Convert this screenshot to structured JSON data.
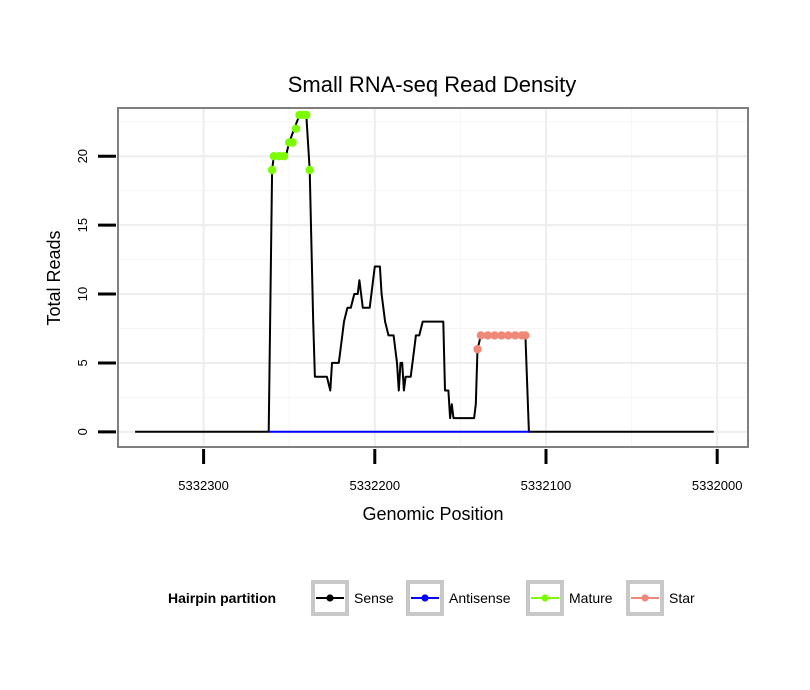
{
  "chart_data": {
    "type": "line",
    "title": "Small RNA-seq Read Density",
    "xlabel": "Genomic Position",
    "ylabel": "Total Reads",
    "xlim": [
      5332350,
      5331982
    ],
    "ylim": [
      -1.1,
      23.5
    ],
    "x_reversed": true,
    "x_ticks": [
      5332300,
      5332200,
      5332100,
      5332000
    ],
    "x_tick_labels": [
      "5332300",
      "5332200",
      "5332100",
      "5332000"
    ],
    "y_ticks": [
      0,
      5,
      10,
      15,
      20
    ],
    "y_tick_labels": [
      "0",
      "5",
      "10",
      "15",
      "20"
    ],
    "grid": true,
    "legend": {
      "title": "Hairpin partition",
      "position": "bottom",
      "entries": [
        {
          "label": "Sense",
          "color": "#000000"
        },
        {
          "label": "Antisense",
          "color": "#0000ff"
        },
        {
          "label": "Mature",
          "color": "#7cfc00"
        },
        {
          "label": "Star",
          "color": "#f08878"
        }
      ]
    },
    "series": [
      {
        "name": "Sense",
        "color": "#000000",
        "points": [
          [
            5332340,
            0
          ],
          [
            5332262,
            0
          ],
          [
            5332260,
            19
          ],
          [
            5332259,
            20
          ],
          [
            5332252,
            20
          ],
          [
            5332250,
            21
          ],
          [
            5332247,
            22
          ],
          [
            5332244,
            23
          ],
          [
            5332240,
            23
          ],
          [
            5332238,
            19
          ],
          [
            5332236,
            8
          ],
          [
            5332235,
            4
          ],
          [
            5332228,
            4
          ],
          [
            5332227,
            3.5
          ],
          [
            5332226,
            3
          ],
          [
            5332225,
            5
          ],
          [
            5332221,
            5
          ],
          [
            5332219,
            7
          ],
          [
            5332218,
            8
          ],
          [
            5332216,
            9
          ],
          [
            5332214,
            9
          ],
          [
            5332212,
            10
          ],
          [
            5332210,
            10
          ],
          [
            5332209,
            11
          ],
          [
            5332208,
            10
          ],
          [
            5332207,
            9
          ],
          [
            5332203,
            9
          ],
          [
            5332201,
            11
          ],
          [
            5332200,
            12
          ],
          [
            5332197,
            12
          ],
          [
            5332196,
            10
          ],
          [
            5332194,
            8
          ],
          [
            5332192,
            7
          ],
          [
            5332189,
            7
          ],
          [
            5332188,
            6
          ],
          [
            5332187,
            5
          ],
          [
            5332186,
            3
          ],
          [
            5332185,
            5
          ],
          [
            5332184,
            5
          ],
          [
            5332183,
            3
          ],
          [
            5332182,
            4
          ],
          [
            5332179,
            4
          ],
          [
            5332177,
            6
          ],
          [
            5332176,
            7
          ],
          [
            5332174,
            7
          ],
          [
            5332172,
            8
          ],
          [
            5332160,
            8
          ],
          [
            5332159,
            3
          ],
          [
            5332157,
            3
          ],
          [
            5332156,
            1
          ],
          [
            5332155,
            2
          ],
          [
            5332154,
            1
          ],
          [
            5332142,
            1
          ],
          [
            5332141,
            2
          ],
          [
            5332140,
            6
          ],
          [
            5332138,
            7
          ],
          [
            5332112,
            7
          ],
          [
            5332110,
            0
          ],
          [
            5332002,
            0
          ]
        ]
      },
      {
        "name": "Antisense",
        "color": "#0000ff",
        "points": [
          [
            5332262,
            0
          ],
          [
            5332110,
            0
          ]
        ]
      },
      {
        "name": "Mature",
        "color": "#7cfc00",
        "markers": [
          [
            5332260,
            19
          ],
          [
            5332259,
            20
          ],
          [
            5332256,
            20
          ],
          [
            5332253,
            20
          ],
          [
            5332250,
            21
          ],
          [
            5332248,
            21
          ],
          [
            5332246,
            22
          ],
          [
            5332244,
            23
          ],
          [
            5332242,
            23
          ],
          [
            5332240,
            23
          ],
          [
            5332238,
            19
          ]
        ]
      },
      {
        "name": "Star",
        "color": "#f08878",
        "markers": [
          [
            5332140,
            6
          ],
          [
            5332138,
            7
          ],
          [
            5332134,
            7
          ],
          [
            5332130,
            7
          ],
          [
            5332126,
            7
          ],
          [
            5332122,
            7
          ],
          [
            5332118,
            7
          ],
          [
            5332114,
            7
          ],
          [
            5332112,
            7
          ]
        ]
      }
    ]
  }
}
